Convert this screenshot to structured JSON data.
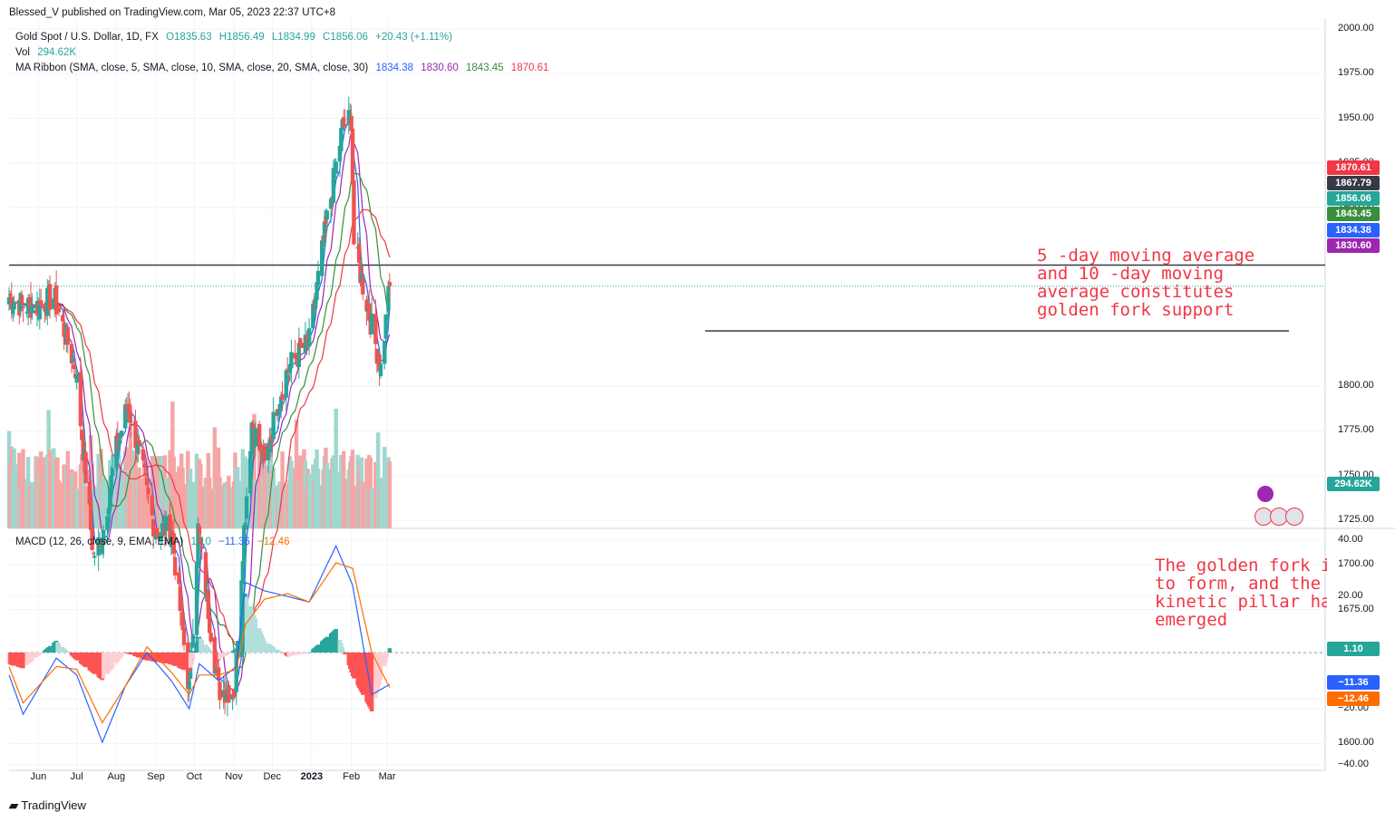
{
  "header": {
    "publisher": "Blessed_V published on TradingView.com, Mar 05, 2023 22:37 UTC+8"
  },
  "symbol": {
    "name": "Gold Spot / U.S. Dollar, 1D, FX",
    "open": "O1835.63",
    "high": "H1856.49",
    "low": "L1834.99",
    "close": "C1856.06",
    "change": "+20.43 (+1.11%)"
  },
  "volume": {
    "label": "Vol",
    "value": "294.62K"
  },
  "ma_ribbon": {
    "label": "MA Ribbon (SMA, close, 5, SMA, close, 10, SMA, close, 20, SMA, close, 30)",
    "v5": "1834.38",
    "v10": "1830.60",
    "v20": "1843.45",
    "v30": "1870.61"
  },
  "macd": {
    "label": "MACD (12, 26, close, 9, EMA, EMA)",
    "hist": "1.10",
    "macd": "−11.36",
    "signal": "−12.46"
  },
  "annotations": {
    "support": "5 -day moving average\nand 10 -day moving\naverage constitutes\ngolden fork support",
    "fork": "The golden fork is ab\nto form, and the risi\nkinetic pillar has jus\nemerged"
  },
  "price_badges": {
    "ma30": "1870.61",
    "level": "1867.79",
    "last": "1856.06",
    "ma20": "1843.45",
    "ma5": "1834.38",
    "ma10": "1830.60",
    "vol": "294.62K",
    "macd_hist": "1.10",
    "macd_line": "−11.36",
    "macd_signal": "−12.46"
  },
  "footer": {
    "brand": "TradingView"
  },
  "colors": {
    "up": "#26a69a",
    "down": "#ef5350",
    "ma5": "#2962ff",
    "ma10": "#9c27b0",
    "ma20": "#388e3c",
    "ma30": "#f23645",
    "macd": "#2962ff",
    "signal": "#ff6d00"
  },
  "chart_data": {
    "type": "candlestick",
    "price_axis": {
      "ticks": [
        "2000.00",
        "1975.00",
        "1950.00",
        "1925.00",
        "1900.00",
        "1800.00",
        "1775.00",
        "1750.00",
        "1725.00",
        "1700.00",
        "1675.00",
        "1650.00",
        "1625.00",
        "1600.00"
      ],
      "ylim": [
        1585,
        2002
      ]
    },
    "macd_axis": {
      "ticks": [
        "40.00",
        "20.00",
        "−20.00",
        "−40.00"
      ],
      "ylim": [
        -42,
        42
      ]
    },
    "x_ticks": [
      "Jun",
      "Jul",
      "Aug",
      "Sep",
      "Oct",
      "Nov",
      "Dec",
      "2023",
      "Feb",
      "Mar"
    ],
    "horizontal_levels": [
      1867.79,
      1831.0
    ],
    "close_anchors": {
      "dates": [
        "2022-05-09",
        "2022-05-20",
        "2022-06-01",
        "2022-06-13",
        "2022-06-30",
        "2022-07-14",
        "2022-07-21",
        "2022-08-01",
        "2022-08-10",
        "2022-08-18",
        "2022-08-31",
        "2022-09-13",
        "2022-09-27",
        "2022-10-04",
        "2022-10-20",
        "2022-11-02",
        "2022-11-08",
        "2022-11-15",
        "2022-11-25",
        "2022-12-05",
        "2022-12-13",
        "2022-12-30",
        "2023-01-10",
        "2023-01-25",
        "2023-02-01",
        "2023-02-03",
        "2023-02-24",
        "2023-03-03"
      ],
      "values": [
        1850,
        1845,
        1845,
        1850,
        1810,
        1705,
        1716,
        1765,
        1790,
        1765,
        1720,
        1720,
        1630,
        1720,
        1630,
        1630,
        1710,
        1780,
        1755,
        1790,
        1810,
        1825,
        1880,
        1945,
        1950,
        1880,
        1810,
        1856
      ]
    },
    "volume_axis": {
      "ylim": [
        0,
        600000
      ]
    },
    "macd_anchors": {
      "dates": [
        "2022-05-09",
        "2022-05-20",
        "2022-06-15",
        "2022-07-01",
        "2022-07-21",
        "2022-08-08",
        "2022-08-25",
        "2022-09-13",
        "2022-09-27",
        "2022-10-05",
        "2022-10-20",
        "2022-11-03",
        "2022-11-10",
        "2022-11-25",
        "2022-12-13",
        "2022-12-30",
        "2023-01-20",
        "2023-02-02",
        "2023-02-17",
        "2023-03-03"
      ],
      "macd": [
        -8,
        -22,
        -2,
        -8,
        -32,
        -12,
        0,
        -10,
        -20,
        -4,
        -10,
        -5,
        25,
        22,
        20,
        18,
        38,
        24,
        -15,
        -11.36
      ],
      "signal": [
        -5,
        -18,
        -5,
        -6,
        -25,
        -12,
        2,
        -7,
        -15,
        -8,
        -8,
        -6,
        10,
        19,
        21,
        18,
        32,
        30,
        0,
        -12.46
      ]
    }
  }
}
